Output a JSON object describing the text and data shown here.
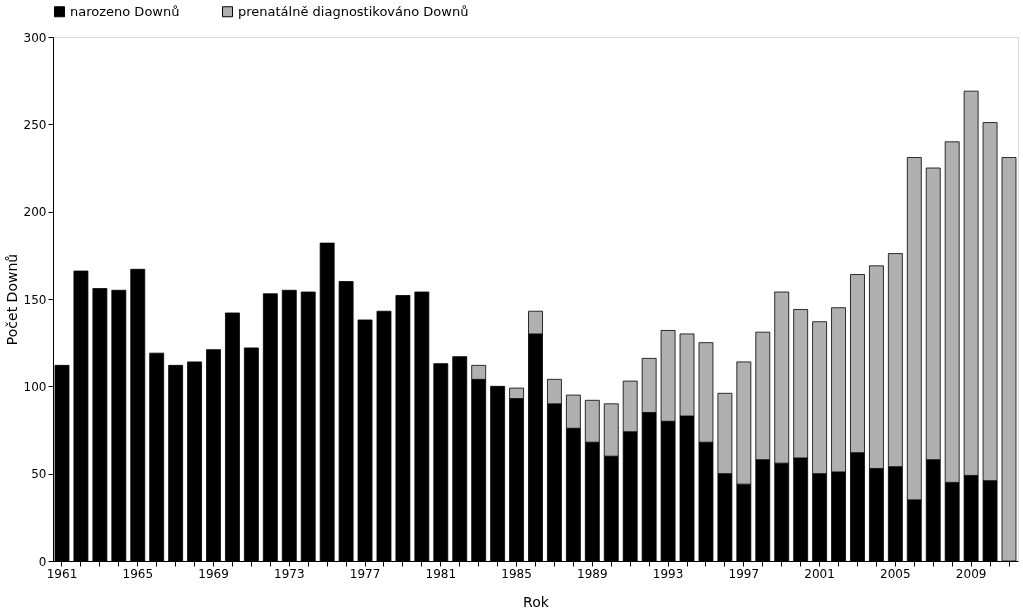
{
  "chart_data": {
    "type": "bar",
    "stacked": true,
    "xlabel": "Rok",
    "ylabel": "Počet Downů",
    "legend": "top",
    "grid": false,
    "categories": [
      "1961",
      null,
      null,
      null,
      "1965",
      null,
      null,
      null,
      "1969",
      null,
      null,
      null,
      "1973",
      null,
      null,
      null,
      "1977",
      null,
      null,
      null,
      "1981",
      null,
      null,
      null,
      "1985",
      null,
      null,
      null,
      "1989",
      null,
      null,
      null,
      "1993",
      null,
      null,
      null,
      "1997",
      null,
      null,
      null,
      "2001",
      null,
      null,
      null,
      "2005",
      null,
      null,
      null,
      "2009",
      null,
      null
    ],
    "ylim": [
      0,
      300
    ],
    "yticks": [
      0,
      50,
      100,
      150,
      200,
      250,
      300
    ],
    "series": [
      {
        "name": "narozeno Downů",
        "color": "#000000",
        "values": [
          112,
          166,
          156,
          155,
          167,
          119,
          112,
          114,
          121,
          142,
          122,
          153,
          155,
          154,
          182,
          160,
          138,
          143,
          152,
          154,
          113,
          117,
          104,
          100,
          93,
          130,
          90,
          76,
          68,
          60,
          74,
          85,
          80,
          83,
          68,
          50,
          44,
          58,
          56,
          59,
          50,
          51,
          62,
          53,
          54,
          35,
          58,
          45,
          49,
          46,
          null
        ]
      },
      {
        "name": "prenatálně diagnostikováno Downů",
        "color": "#b0b0b0",
        "values": [
          null,
          null,
          null,
          null,
          null,
          null,
          null,
          null,
          null,
          null,
          null,
          null,
          null,
          null,
          null,
          null,
          null,
          null,
          null,
          null,
          null,
          null,
          8,
          null,
          6,
          13,
          14,
          19,
          24,
          30,
          29,
          31,
          52,
          47,
          57,
          46,
          70,
          73,
          98,
          85,
          87,
          94,
          102,
          116,
          122,
          196,
          167,
          195,
          220,
          205,
          231
        ]
      }
    ]
  }
}
